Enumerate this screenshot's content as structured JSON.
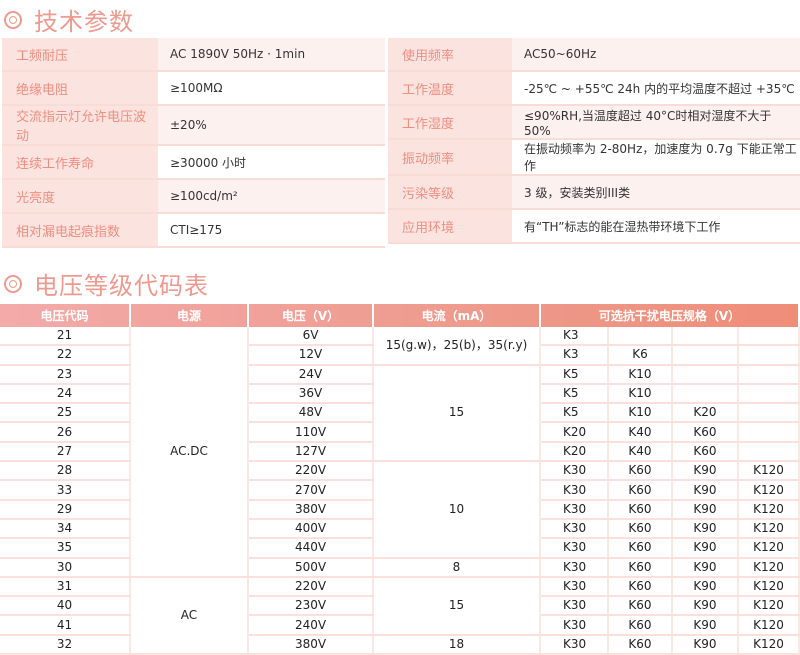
{
  "section1": {
    "title": "技术参数"
  },
  "specs_left": [
    {
      "label": "工频耐压",
      "value": "AC  1890V      50Hz · 1min"
    },
    {
      "label": "绝缘电阻",
      "value": "≥100MΩ"
    },
    {
      "label": "交流指示灯允许电压波动",
      "value": "±20%"
    },
    {
      "label": "连续工作寿命",
      "value": "≥30000 小时"
    },
    {
      "label": "光亮度",
      "value": "≥100cd/m²"
    },
    {
      "label": "相对漏电起痕指数",
      "value": "CTI≥175"
    }
  ],
  "specs_right": [
    {
      "label": "使用频率",
      "value": "AC50~60Hz"
    },
    {
      "label": "工作温度",
      "value": "-25℃ ~ +55℃      24h 内的平均温度不超过 +35℃"
    },
    {
      "label": "工作湿度",
      "value": "≤90%RH,当温度超过 40°C时相对湿度不大于 50%"
    },
    {
      "label": "振动频率",
      "value": "在振动频率为 2-80Hz，加速度为 0.7g 下能正常工作"
    },
    {
      "label": "污染等级",
      "value": "3 级，安装类别III类"
    },
    {
      "label": "应用环境",
      "value": "有“TH”标志的能在湿热带环境下工作"
    }
  ],
  "section2": {
    "title": "电压等级代码表"
  },
  "codes_table": {
    "headers": [
      "电压代码",
      "电源",
      "电压（V）",
      "电流（mA）",
      "可选抗干扰电压规格（V）"
    ],
    "power_groups": [
      {
        "label": "AC.DC",
        "rows": 13
      },
      {
        "label": "AC",
        "rows": 4
      }
    ],
    "current_groups": [
      {
        "label": "15(g.w)，25(b)，35(r.y)",
        "rows": 2
      },
      {
        "label": "15",
        "rows": 5
      },
      {
        "label": "10",
        "rows": 5
      },
      {
        "label": "8",
        "rows": 1
      },
      {
        "label": "15",
        "rows": 3
      },
      {
        "label": "18",
        "rows": 1
      }
    ],
    "rows": [
      {
        "code": "21",
        "voltage": "6V",
        "specs": [
          "K3",
          "",
          "",
          ""
        ]
      },
      {
        "code": "22",
        "voltage": "12V",
        "specs": [
          "K3",
          "K6",
          "",
          ""
        ]
      },
      {
        "code": "23",
        "voltage": "24V",
        "specs": [
          "K5",
          "K10",
          "",
          ""
        ]
      },
      {
        "code": "24",
        "voltage": "36V",
        "specs": [
          "K5",
          "K10",
          "",
          ""
        ]
      },
      {
        "code": "25",
        "voltage": "48V",
        "specs": [
          "K5",
          "K10",
          "K20",
          ""
        ]
      },
      {
        "code": "26",
        "voltage": "110V",
        "specs": [
          "K20",
          "K40",
          "K60",
          ""
        ]
      },
      {
        "code": "27",
        "voltage": "127V",
        "specs": [
          "K20",
          "K40",
          "K60",
          ""
        ]
      },
      {
        "code": "28",
        "voltage": "220V",
        "specs": [
          "K30",
          "K60",
          "K90",
          "K120"
        ]
      },
      {
        "code": "33",
        "voltage": "270V",
        "specs": [
          "K30",
          "K60",
          "K90",
          "K120"
        ]
      },
      {
        "code": "29",
        "voltage": "380V",
        "specs": [
          "K30",
          "K60",
          "K90",
          "K120"
        ]
      },
      {
        "code": "34",
        "voltage": "400V",
        "specs": [
          "K30",
          "K60",
          "K90",
          "K120"
        ]
      },
      {
        "code": "35",
        "voltage": "440V",
        "specs": [
          "K30",
          "K60",
          "K90",
          "K120"
        ]
      },
      {
        "code": "30",
        "voltage": "500V",
        "specs": [
          "K30",
          "K60",
          "K90",
          "K120"
        ]
      },
      {
        "code": "31",
        "voltage": "220V",
        "specs": [
          "K30",
          "K60",
          "K90",
          "K120"
        ]
      },
      {
        "code": "40",
        "voltage": "230V",
        "specs": [
          "K30",
          "K60",
          "K90",
          "K120"
        ]
      },
      {
        "code": "41",
        "voltage": "240V",
        "specs": [
          "K30",
          "K60",
          "K90",
          "K120"
        ]
      },
      {
        "code": "32",
        "voltage": "380V",
        "specs": [
          "K30",
          "K60",
          "K90",
          "K120"
        ]
      }
    ]
  }
}
